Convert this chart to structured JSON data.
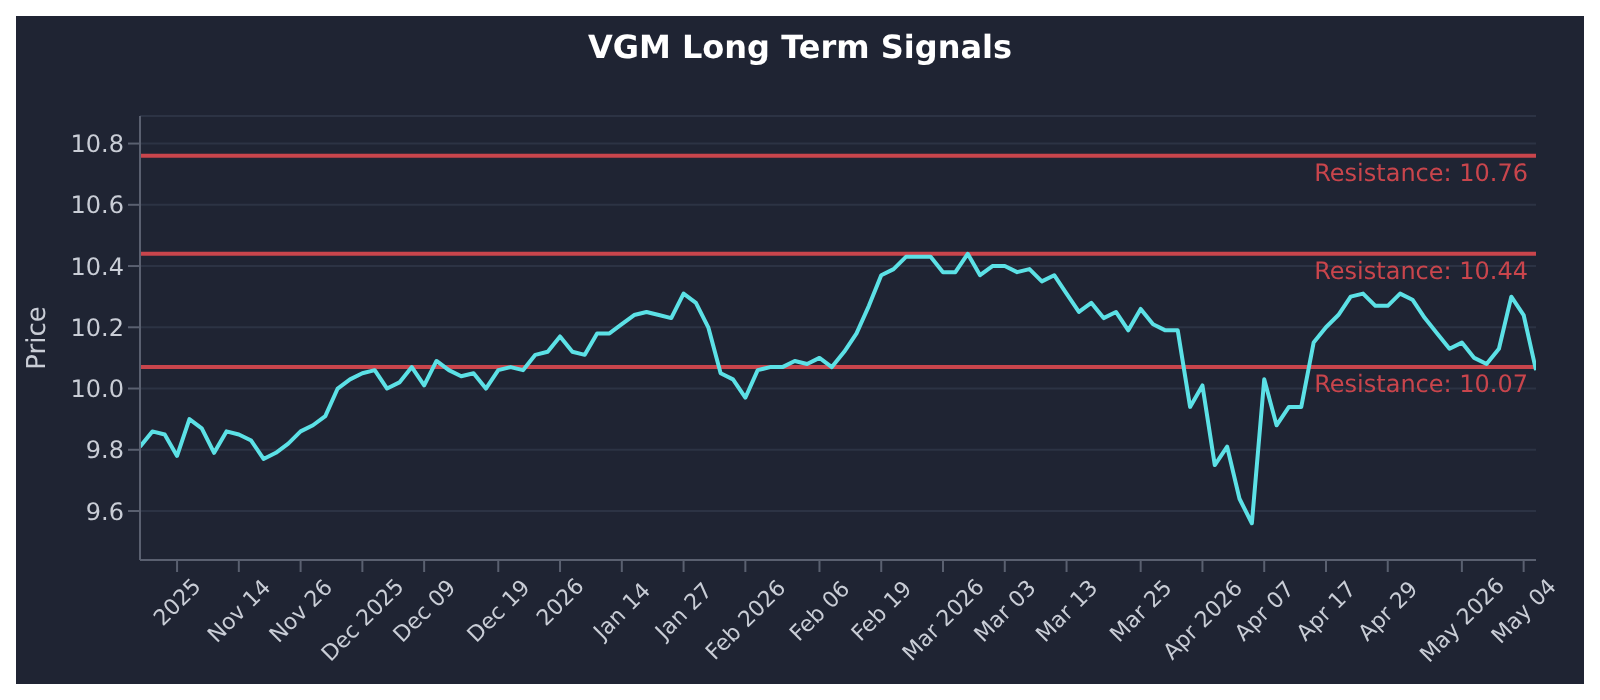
{
  "chart_data": {
    "type": "line",
    "title": "VGM Long Term Signals",
    "ylabel": "Price",
    "categories": [
      null,
      null,
      null,
      "2025",
      null,
      null,
      null,
      null,
      "Nov 14",
      null,
      null,
      null,
      null,
      "Nov 26",
      null,
      null,
      null,
      null,
      "Dec 2025",
      null,
      null,
      null,
      null,
      "Dec 09",
      null,
      null,
      null,
      null,
      null,
      "Dec 19",
      null,
      null,
      null,
      null,
      "2026",
      null,
      null,
      null,
      null,
      "Jan 14",
      null,
      null,
      null,
      null,
      "Jan 27",
      null,
      null,
      null,
      null,
      "Feb 2026",
      null,
      null,
      null,
      null,
      null,
      "Feb 06",
      null,
      null,
      null,
      null,
      "Feb 19",
      null,
      null,
      null,
      null,
      "Mar 2026",
      null,
      null,
      null,
      null,
      "Mar 03",
      null,
      null,
      null,
      null,
      "Mar 13",
      null,
      null,
      null,
      null,
      null,
      "Mar 25",
      null,
      null,
      null,
      null,
      "Apr 2026",
      null,
      null,
      null,
      null,
      "Apr 07",
      null,
      null,
      null,
      null,
      "Apr 17",
      null,
      null,
      null,
      null,
      "Apr 29",
      null,
      null,
      null,
      null,
      null,
      "May 2026",
      null,
      null,
      null,
      null,
      "May 04",
      null
    ],
    "series": [
      {
        "color": "#5ce1e6",
        "values": [
          9.81,
          9.86,
          9.85,
          9.78,
          9.9,
          9.87,
          9.79,
          9.86,
          9.85,
          9.83,
          9.77,
          9.79,
          9.82,
          9.86,
          9.88,
          9.91,
          10.0,
          10.03,
          10.05,
          10.06,
          10.0,
          10.02,
          10.07,
          10.01,
          10.09,
          10.06,
          10.04,
          10.05,
          10.0,
          10.06,
          10.07,
          10.06,
          10.11,
          10.12,
          10.17,
          10.12,
          10.11,
          10.18,
          10.18,
          10.21,
          10.24,
          10.25,
          10.24,
          10.23,
          10.31,
          10.28,
          10.2,
          10.05,
          10.03,
          9.97,
          10.06,
          10.07,
          10.07,
          10.09,
          10.08,
          10.1,
          10.07,
          10.12,
          10.18,
          10.27,
          10.37,
          10.39,
          10.43,
          10.43,
          10.43,
          10.38,
          10.38,
          10.44,
          10.37,
          10.4,
          10.4,
          10.38,
          10.39,
          10.35,
          10.37,
          10.31,
          10.25,
          10.28,
          10.23,
          10.25,
          10.19,
          10.26,
          10.21,
          10.19,
          10.19,
          9.94,
          10.01,
          9.75,
          9.81,
          9.64,
          9.56,
          10.03,
          9.88,
          9.94,
          9.94,
          10.15,
          10.2,
          10.24,
          10.3,
          10.31,
          10.27,
          10.27,
          10.31,
          10.29,
          10.23,
          10.18,
          10.13,
          10.15,
          10.1,
          10.08,
          10.13,
          10.3,
          10.24,
          10.06
        ]
      }
    ],
    "ylim": [
      9.44,
      10.89
    ],
    "yticks": [
      9.6,
      9.8,
      {
        "value": 10,
        "label": "10.0"
      },
      10.2,
      10.4,
      10.6,
      10.8
    ],
    "grid": "y",
    "marker": "none",
    "line_style": "solid",
    "ref_lines": [
      {
        "axis": "y",
        "value": 10.76,
        "label": "Resistance: 10.76",
        "color": "#c9454c"
      },
      {
        "axis": "y",
        "value": 10.44,
        "label": "Resistance: 10.44",
        "color": "#c9454c"
      },
      {
        "axis": "y",
        "value": 10.07,
        "label": "Resistance: 10.07",
        "color": "#c9454c"
      }
    ]
  }
}
